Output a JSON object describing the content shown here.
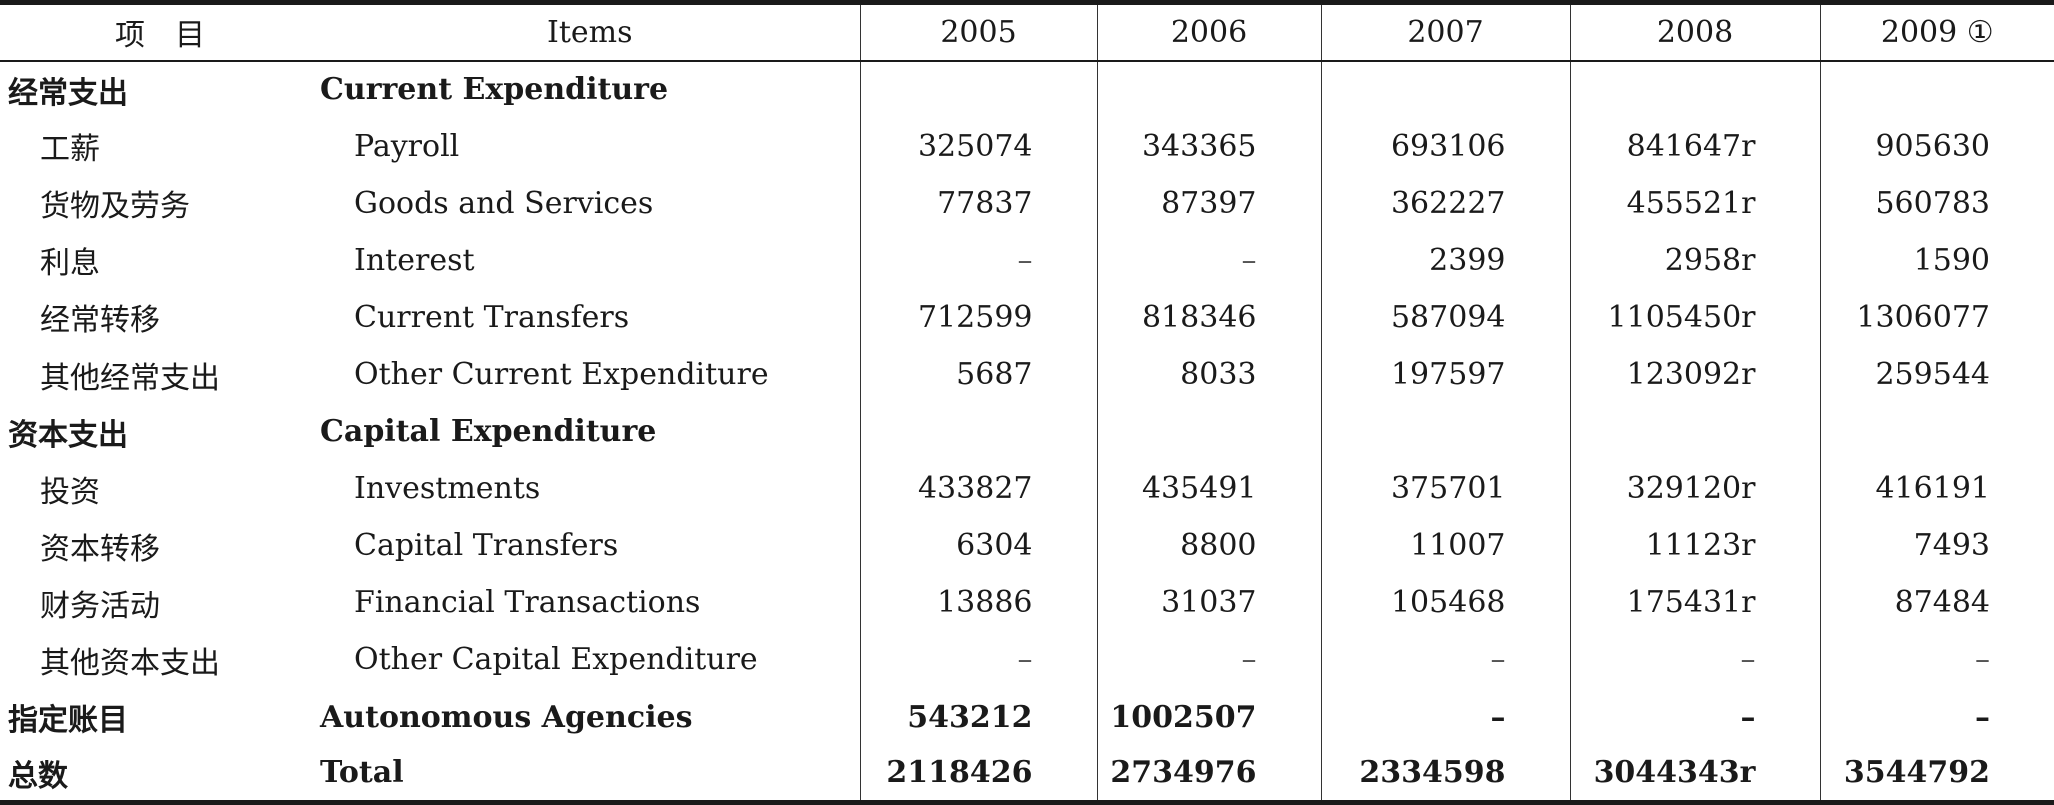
{
  "header": {
    "item_zh": "项　目",
    "item_en": "Items",
    "years": [
      "2005",
      "2006",
      "2007",
      "2008",
      "2009 ①"
    ]
  },
  "rows": [
    {
      "zh": "经常支出",
      "en": "Current Expenditure",
      "values": [
        "",
        "",
        "",
        "",
        ""
      ]
    },
    {
      "zh": "工薪",
      "en": "Payroll",
      "values": [
        "325074",
        "343365",
        "693106",
        "841647r",
        "905630"
      ]
    },
    {
      "zh": "货物及劳务",
      "en": "Goods and Services",
      "values": [
        "77837",
        "87397",
        "362227",
        "455521r",
        "560783"
      ]
    },
    {
      "zh": "利息",
      "en": "Interest",
      "values": [
        "–",
        "–",
        "2399",
        "2958r",
        "1590"
      ]
    },
    {
      "zh": "经常转移",
      "en": "Current Transfers",
      "values": [
        "712599",
        "818346",
        "587094",
        "1105450r",
        "1306077"
      ]
    },
    {
      "zh": "其他经常支出",
      "en": "Other Current Expenditure",
      "values": [
        "5687",
        "8033",
        "197597",
        "123092r",
        "259544"
      ]
    },
    {
      "zh": "资本支出",
      "en": "Capital Expenditure",
      "values": [
        "",
        "",
        "",
        "",
        ""
      ]
    },
    {
      "zh": "投资",
      "en": "Investments",
      "values": [
        "433827",
        "435491",
        "375701",
        "329120r",
        "416191"
      ]
    },
    {
      "zh": "资本转移",
      "en": "Capital Transfers",
      "values": [
        "6304",
        "8800",
        "11007",
        "11123r",
        "7493"
      ]
    },
    {
      "zh": "财务活动",
      "en": "Financial Transactions",
      "values": [
        "13886",
        "31037",
        "105468",
        "175431r",
        "87484"
      ]
    },
    {
      "zh": "其他资本支出",
      "en": "Other Capital Expenditure",
      "values": [
        "–",
        "–",
        "–",
        "–",
        "–"
      ]
    },
    {
      "zh": "指定账目",
      "en": "Autonomous Agencies",
      "values": [
        "543212",
        "1002507",
        "–",
        "–",
        "–"
      ]
    },
    {
      "zh": "总数",
      "en": "Total",
      "values": [
        "2118426",
        "2734976",
        "2334598",
        "3044343r",
        "3544792"
      ]
    }
  ]
}
